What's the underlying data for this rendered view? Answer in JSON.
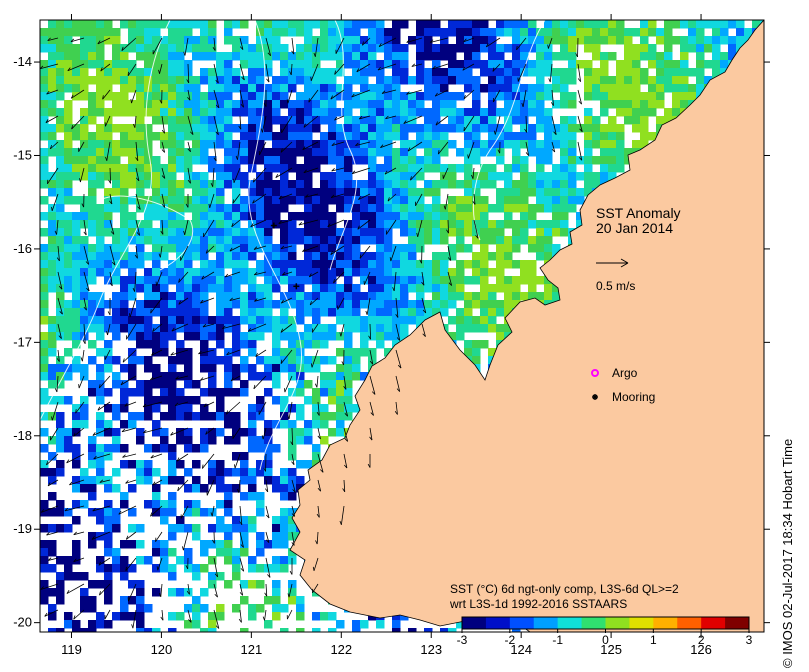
{
  "map": {
    "title_line1": "SST Anomaly",
    "title_line2": "20 Jan 2014",
    "scale_vector_label": "0.5 m/s",
    "legend": {
      "argo_label": "Argo",
      "mooring_label": "Mooring",
      "argo_color": "#ff00ff",
      "mooring_color": "#000000"
    },
    "caption_line1": "SST (°C) 6d ngt-only comp, L3S-6d QL>=2",
    "caption_line2": "wrt L3S-1d 1992-2016 SSTAARS",
    "credit": "© IMOS 02-Jul-2017 18:34 Hobart Time",
    "colors": {
      "land": "#fbc9a0",
      "no_data": "#ffffff"
    }
  },
  "axes": {
    "x_ticks": [
      "119",
      "120",
      "121",
      "122",
      "123",
      "124",
      "125",
      "126"
    ],
    "y_ticks": [
      "-14",
      "-15",
      "-16",
      "-17",
      "-18",
      "-19",
      "-20"
    ]
  },
  "colorbar": {
    "ticks": [
      "-3",
      "-2",
      "-1",
      "0",
      "1",
      "2",
      "3"
    ],
    "range": [
      -3,
      3
    ],
    "colors": [
      "#00007f",
      "#0010c8",
      "#0050ff",
      "#00a0ff",
      "#10e0d8",
      "#30e070",
      "#90e020",
      "#e0e000",
      "#ffb000",
      "#ff6000",
      "#e00000",
      "#7f0000"
    ]
  },
  "chart_data": {
    "type": "heatmap",
    "title": "SST Anomaly 20 Jan 2014",
    "xlim": [
      118.65,
      126.7
    ],
    "ylim": [
      -20.1,
      -13.55
    ],
    "zlim": [
      -3,
      3
    ],
    "markers": {
      "argo": [],
      "mooring": [
        [
          121.25,
          -15.75
        ],
        [
          121.5,
          -16.4
        ]
      ]
    }
  }
}
